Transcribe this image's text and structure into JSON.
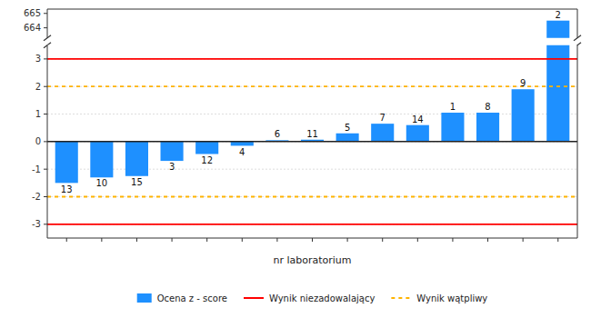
{
  "chart_data": [
    {
      "type": "bar",
      "categories": [
        null,
        null,
        null,
        null,
        null,
        null,
        null,
        null,
        null,
        null,
        null,
        null,
        null,
        null,
        "2"
      ],
      "values": [
        null,
        null,
        null,
        null,
        null,
        null,
        null,
        null,
        null,
        null,
        null,
        null,
        null,
        null,
        664.5
      ],
      "color": "#1E90FF",
      "ylim": [
        663.3,
        665.3
      ],
      "yticks": [
        664,
        665
      ],
      "grid": false,
      "tick_labels": "y"
    },
    {
      "type": "bar",
      "xlabel": "nr laboratorium",
      "categories": [
        "13",
        "10",
        "15",
        "3",
        "12",
        "4",
        "6",
        "11",
        "5",
        "7",
        "14",
        "1",
        "8",
        "9",
        null
      ],
      "series": [
        {
          "name": "Ocena z - score",
          "color": "#1E90FF",
          "values": [
            -1.5,
            -1.3,
            -1.25,
            -0.7,
            -0.45,
            -0.15,
            0.05,
            0.07,
            0.3,
            0.65,
            0.6,
            1.05,
            1.05,
            1.9,
            null
          ]
        }
      ],
      "reference_lines": [
        {
          "name": "Wynik niezadowalający",
          "color": "#FF0000",
          "line_style": "solid",
          "values": [
            3.0,
            -3.0
          ]
        },
        {
          "name": "Wynik wątpliwy",
          "color": "#FFB300",
          "line_style": "dashed",
          "values": [
            2.0,
            -2.0
          ]
        }
      ],
      "ylim": [
        -3.5,
        3.5
      ],
      "yticks": [
        -3,
        -2,
        -1,
        0,
        1,
        2,
        3
      ],
      "grid": true,
      "tick_labels": "y",
      "legend": "bottom"
    }
  ]
}
